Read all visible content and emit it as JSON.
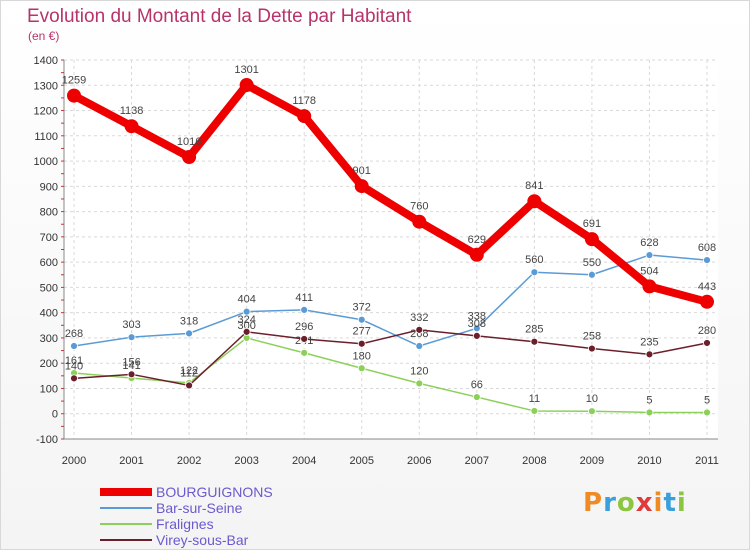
{
  "title": "Evolution du Montant de la Dette par Habitant",
  "subtitle": "(en €)",
  "logo": "Proxiti",
  "chart_data": {
    "type": "line",
    "title": "Evolution du Montant de la Dette par Habitant",
    "subtitle": "(en €)",
    "xlabel": "",
    "ylabel": "",
    "x": [
      "2000",
      "2001",
      "2002",
      "2003",
      "2004",
      "2005",
      "2006",
      "2007",
      "2008",
      "2009",
      "2010",
      "2011"
    ],
    "ylim": [
      -100,
      1400
    ],
    "yticks": [
      -100,
      0,
      100,
      200,
      300,
      400,
      500,
      600,
      700,
      800,
      900,
      1000,
      1100,
      1200,
      1300,
      1400
    ],
    "grid": true,
    "legend_position": "bottom",
    "series": [
      {
        "name": "BOURGUIGNONS",
        "color": "#ee0000",
        "values": [
          1259,
          1138,
          1016,
          1301,
          1178,
          901,
          760,
          629,
          841,
          691,
          504,
          443
        ]
      },
      {
        "name": "Bar-sur-Seine",
        "color": "#5b9bd5",
        "values": [
          268,
          303,
          318,
          404,
          411,
          372,
          268,
          338,
          560,
          550,
          628,
          608
        ]
      },
      {
        "name": "Fralignes",
        "color": "#8cd05a",
        "values": [
          161,
          141,
          122,
          300,
          241,
          180,
          120,
          66,
          11,
          10,
          5,
          5
        ]
      },
      {
        "name": "Virey-sous-Bar",
        "color": "#6b1f2a",
        "values": [
          140,
          156,
          112,
          324,
          296,
          277,
          332,
          308,
          285,
          258,
          235,
          280
        ]
      }
    ]
  }
}
